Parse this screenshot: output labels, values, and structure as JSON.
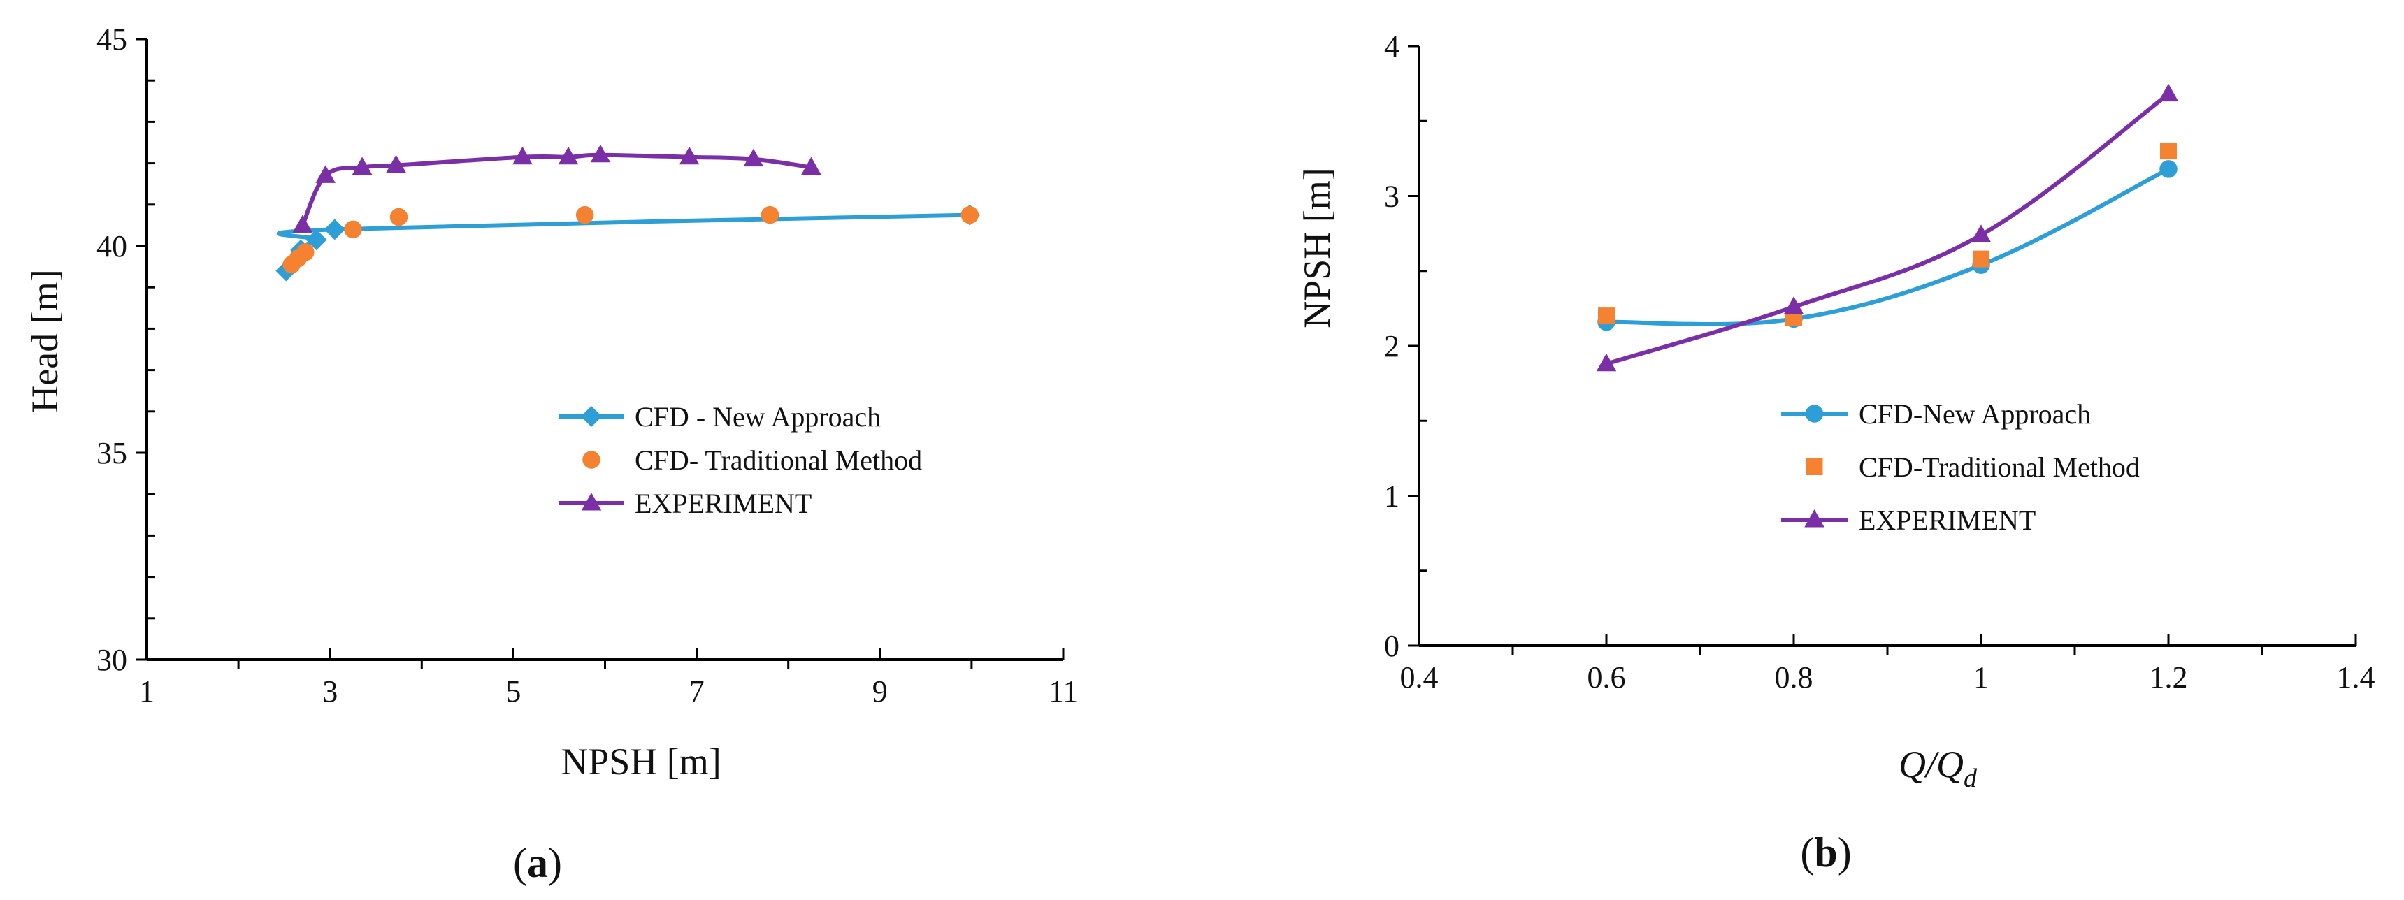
{
  "chart_data": [
    {
      "panel_label_prefix": "(",
      "panel_label_letter": "a",
      "panel_label_suffix": ")",
      "type": "line",
      "xlabel": "NPSH [m]",
      "ylabel": "Head [m]",
      "xlim": [
        1,
        11
      ],
      "ylim": [
        30,
        45
      ],
      "xticks": [
        1,
        3,
        5,
        7,
        9,
        11
      ],
      "xminor": [
        2,
        4,
        6,
        8,
        10
      ],
      "yticks": [
        30,
        35,
        40,
        45
      ],
      "yminor": [
        31,
        32,
        33,
        34,
        36,
        37,
        38,
        39,
        41,
        42,
        43,
        44
      ],
      "legend_position": "right-middle",
      "series": [
        {
          "name": "CFD - New Approach",
          "color": "#2e9fd6",
          "marker": "diamond",
          "line": true,
          "x": [
            2.52,
            2.68,
            2.85,
            3.05,
            9.98
          ],
          "y": [
            39.4,
            39.9,
            40.15,
            40.4,
            40.75
          ]
        },
        {
          "name": "CFD- Traditional Method",
          "color": "#f58231",
          "marker": "circle",
          "line": false,
          "x": [
            2.58,
            2.65,
            2.73,
            3.25,
            3.75,
            5.78,
            7.8,
            9.98
          ],
          "y": [
            39.55,
            39.7,
            39.85,
            40.4,
            40.7,
            40.75,
            40.75,
            40.75
          ]
        },
        {
          "name": "EXPERIMENT",
          "color": "#7b2fa6",
          "marker": "triangle",
          "line": true,
          "x": [
            2.7,
            2.95,
            3.35,
            3.72,
            5.1,
            5.6,
            5.95,
            6.92,
            7.62,
            8.25
          ],
          "y": [
            40.5,
            41.7,
            41.9,
            41.95,
            42.15,
            42.15,
            42.2,
            42.15,
            42.1,
            41.9
          ]
        }
      ]
    },
    {
      "panel_label_prefix": "(",
      "panel_label_letter": "b",
      "panel_label_suffix": ")",
      "type": "line",
      "xlabel_main": "Q/Q",
      "xlabel_sub": "d",
      "ylabel": "NPSH [m]",
      "xlim": [
        0.4,
        1.4
      ],
      "ylim": [
        0,
        4
      ],
      "xticks": [
        "0.4",
        "0.6",
        "0.8",
        "1",
        "1.2",
        "1.4"
      ],
      "xminor": [
        0.5,
        0.7,
        0.9,
        1.1,
        1.3
      ],
      "yticks": [
        "0",
        "1",
        "2",
        "3",
        "4"
      ],
      "yminor": [
        0.5,
        1.5,
        2.5,
        3.5
      ],
      "legend_position": "bottom-center",
      "series": [
        {
          "name": "CFD-New Approach",
          "color": "#2e9fd6",
          "marker": "circle",
          "line": true,
          "x": [
            0.6,
            0.8,
            1.0,
            1.2
          ],
          "y": [
            2.16,
            2.18,
            2.54,
            3.18
          ]
        },
        {
          "name": "CFD-Traditional Method",
          "color": "#f58231",
          "marker": "square",
          "line": false,
          "x": [
            0.6,
            0.8,
            1.0,
            1.2
          ],
          "y": [
            2.2,
            2.19,
            2.58,
            3.3
          ]
        },
        {
          "name": "EXPERIMENT",
          "color": "#7b2fa6",
          "marker": "triangle",
          "line": true,
          "x": [
            0.6,
            0.8,
            1.0,
            1.2
          ],
          "y": [
            1.88,
            2.26,
            2.74,
            3.68
          ]
        }
      ]
    }
  ]
}
